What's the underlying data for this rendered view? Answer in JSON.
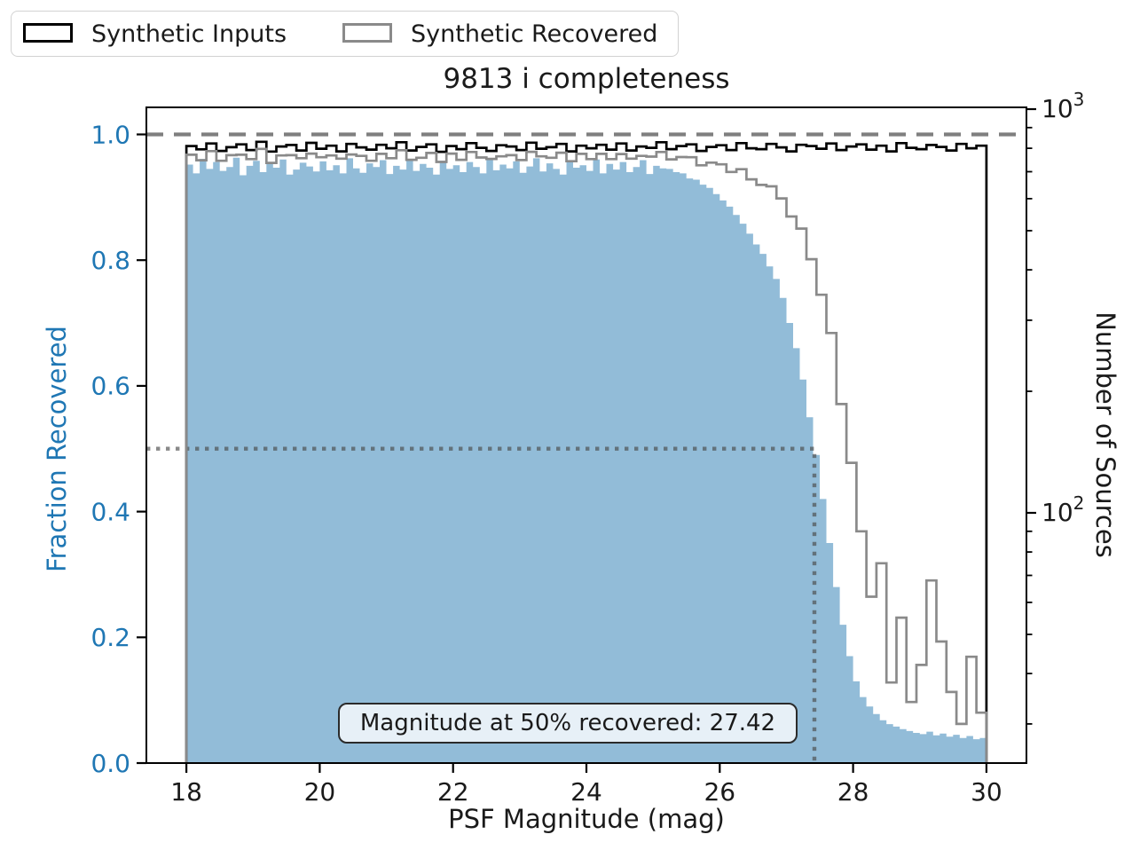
{
  "figure": {
    "title": "9813 i completeness",
    "background": "#ffffff"
  },
  "legend": {
    "items": [
      {
        "label": "Synthetic Inputs",
        "swatch_color": "#000000"
      },
      {
        "label": "Synthetic Recovered",
        "swatch_color": "#8a8a8a"
      }
    ]
  },
  "annotation": {
    "text": "Magnitude at 50% recovered: 27.42"
  },
  "colors": {
    "fraction_fill": "#92bcd8",
    "left_axis_accent": "#1f77b4",
    "inputs_line": "#000000",
    "recovered_line": "#8a8a8a",
    "dashed_line": "#7f7f7f",
    "dotted_line": "rgba(74,74,74,0.65)",
    "tick_text": "#1a1a1a"
  },
  "chart_data": {
    "type": "bar",
    "title": "9813 i completeness",
    "xlabel": "PSF Magnitude (mag)",
    "ylabel_left": "Fraction Recovered",
    "ylabel_right": "Number of Sources",
    "xlim": [
      17.4,
      30.6
    ],
    "ylim_left": [
      0,
      1.043
    ],
    "ylim_right_log": [
      23.9,
      1010
    ],
    "x_ticks": [
      18,
      20,
      22,
      24,
      26,
      28,
      30
    ],
    "y_left_ticks": [
      "0.0",
      "0.2",
      "0.4",
      "0.6",
      "0.8",
      "1.0"
    ],
    "y_right_major_ticks": [
      {
        "base": "10",
        "exp": "2",
        "value": 100
      },
      {
        "base": "10",
        "exp": "3",
        "value": 1000
      }
    ],
    "y_right_minor_ticks": [
      30,
      40,
      50,
      60,
      70,
      80,
      90,
      200,
      300,
      400,
      500,
      600,
      700,
      800,
      900
    ],
    "grid": false,
    "legend_position": "upper-left-outside",
    "series": [
      {
        "name": "Fraction Recovered",
        "type": "filled-step",
        "axis": "left",
        "bin_start": 18.0,
        "bin_width": 0.1,
        "values": [
          0.952,
          0.938,
          0.961,
          0.945,
          0.956,
          0.942,
          0.948,
          0.963,
          0.935,
          0.95,
          0.958,
          0.94,
          0.953,
          0.947,
          0.96,
          0.936,
          0.944,
          0.955,
          0.949,
          0.941,
          0.957,
          0.943,
          0.951,
          0.938,
          0.962,
          0.946,
          0.939,
          0.954,
          0.948,
          0.959,
          0.937,
          0.95,
          0.944,
          0.961,
          0.942,
          0.953,
          0.947,
          0.936,
          0.958,
          0.945,
          0.951,
          0.94,
          0.956,
          0.948,
          0.938,
          0.96,
          0.943,
          0.952,
          0.946,
          0.957,
          0.939,
          0.949,
          0.962,
          0.941,
          0.954,
          0.945,
          0.936,
          0.958,
          0.947,
          0.951,
          0.942,
          0.96,
          0.938,
          0.953,
          0.944,
          0.956,
          0.94,
          0.948,
          0.959,
          0.937,
          0.95,
          0.946,
          0.945,
          0.94,
          0.938,
          0.93,
          0.928,
          0.92,
          0.915,
          0.905,
          0.895,
          0.885,
          0.872,
          0.858,
          0.842,
          0.825,
          0.81,
          0.79,
          0.77,
          0.74,
          0.7,
          0.66,
          0.61,
          0.55,
          0.49,
          0.42,
          0.35,
          0.28,
          0.22,
          0.17,
          0.13,
          0.105,
          0.09,
          0.078,
          0.068,
          0.062,
          0.058,
          0.054,
          0.051,
          0.048,
          0.046,
          0.05,
          0.044,
          0.047,
          0.042,
          0.045,
          0.04,
          0.043,
          0.038,
          0.04
        ]
      },
      {
        "name": "Synthetic Inputs",
        "type": "step",
        "axis": "right",
        "bin_start": 18.0,
        "bin_width": 0.15,
        "values": [
          810,
          795,
          822,
          788,
          805,
          818,
          792,
          830,
          785,
          808,
          815,
          790,
          825,
          798,
          812,
          786,
          820,
          804,
          794,
          816,
          800,
          828,
          790,
          806,
          818,
          784,
          810,
          796,
          824,
          802,
          788,
          814,
          808,
          792,
          826,
          798,
          805,
          820,
          786,
          812,
          800,
          816,
          794,
          822,
          790,
          808,
          802,
          828,
          796,
          810,
          818,
          788,
          806,
          814,
          792,
          824,
          800,
          796,
          820,
          804,
          786,
          816,
          810,
          798,
          822,
          792,
          808,
          818,
          794,
          812,
          786,
          824,
          802,
          796,
          815,
          806,
          790,
          820,
          800,
          812
        ]
      },
      {
        "name": "Synthetic Recovered",
        "type": "step",
        "axis": "right",
        "bin_start": 18.0,
        "bin_width": 0.15,
        "values": [
          771,
          747,
          787,
          745,
          769,
          771,
          752,
          797,
          736,
          768,
          769,
          756,
          776,
          760,
          768,
          754,
          772,
          766,
          745,
          775,
          756,
          791,
          749,
          758,
          779,
          740,
          776,
          749,
          783,
          759,
          753,
          764,
          769,
          748,
          784,
          764,
          758,
          780,
          743,
          775,
          752,
          775,
          752,
          774,
          754,
          766,
          763,
          783,
          751,
          761,
          760,
          726,
          737,
          730,
          699,
          710,
          670,
          649,
          644,
          601,
          542,
          506,
          425,
          347,
          279,
          186,
          133,
          90,
          62,
          75,
          38,
          55,
          34,
          42,
          68,
          48,
          36,
          30,
          44,
          32
        ]
      }
    ],
    "reference_lines": {
      "dashed_fraction": 1.0,
      "dotted_fraction": 0.5,
      "dotted_mag": 27.42
    }
  }
}
